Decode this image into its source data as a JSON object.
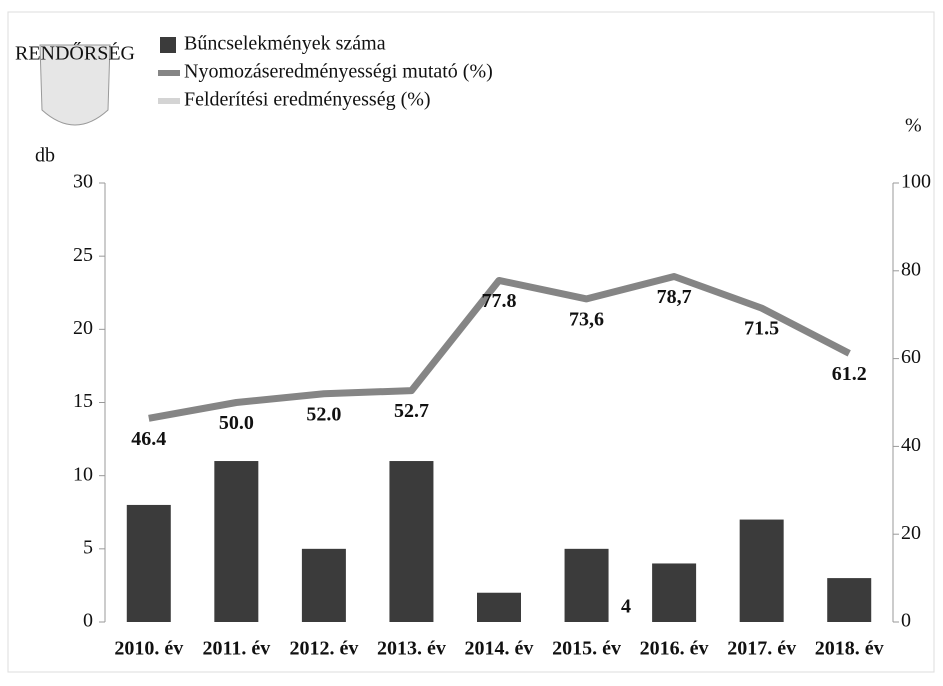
{
  "logo_text": "RENDŐRSÉG",
  "chart_data": {
    "type": "bar-line",
    "y_label": "db",
    "y2_label": "%",
    "categories": [
      "2010. év",
      "2011. év",
      "2012. év",
      "2013. év",
      "2014. év",
      "2015. év",
      "2016. év",
      "2017. év",
      "2018. év"
    ],
    "series": [
      {
        "name": "Bűncselekmények száma",
        "type": "bar",
        "color": "#3b3b3b",
        "values": [
          8,
          11,
          5,
          11,
          2,
          5,
          4,
          7,
          3
        ]
      },
      {
        "name": "Nyomozáseredményességi mutató (%)",
        "type": "line",
        "axis": "y2",
        "color": "#858585",
        "values": [
          46.4,
          50.0,
          52.0,
          52.7,
          77.8,
          73.6,
          78.7,
          71.5,
          61.2
        ],
        "value_labels": [
          "46.4",
          "50.0",
          "52.0",
          "52.7",
          "77.8",
          "73,6",
          "78,7",
          "71.5",
          "61.2"
        ]
      },
      {
        "name": "Felderítési eredményesség (%)",
        "type": "line",
        "axis": "y2",
        "color": "#d4d4d4",
        "values": [
          null,
          null,
          null,
          null,
          null,
          null,
          null,
          null,
          null
        ]
      }
    ],
    "annotations": [
      "4"
    ],
    "ylim": [
      0,
      30
    ],
    "yticks": [
      0,
      5,
      10,
      15,
      20,
      25,
      30
    ],
    "y2lim": [
      0,
      100
    ],
    "y2ticks": [
      0,
      20,
      40,
      60,
      80,
      100
    ]
  }
}
